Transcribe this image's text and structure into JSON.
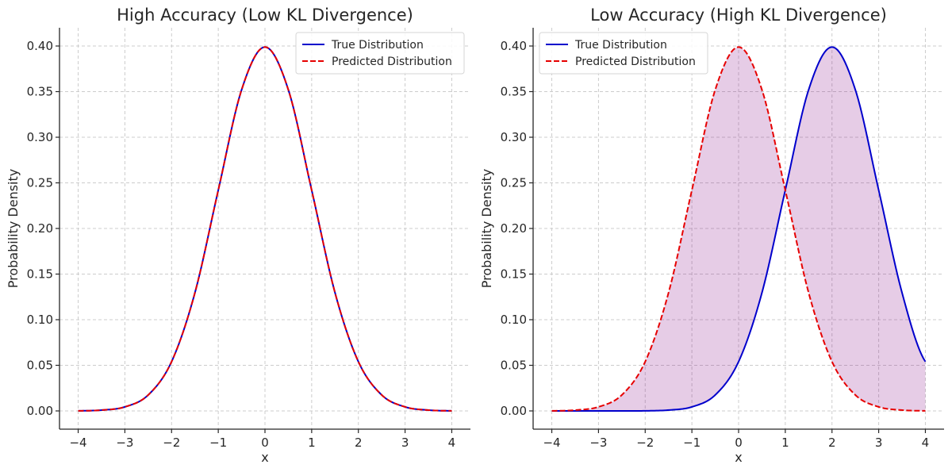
{
  "chart_data": [
    {
      "type": "line",
      "title": "High Accuracy (Low KL Divergence)",
      "xlabel": "x",
      "ylabel": "Probability Density",
      "xlim": [
        -4.4,
        4.4
      ],
      "ylim": [
        -0.02,
        0.42
      ],
      "x_ticks": [
        -4,
        -3,
        -2,
        -1,
        0,
        1,
        2,
        3,
        4
      ],
      "x_tick_labels": [
        "−4",
        "−3",
        "−2",
        "−1",
        "0",
        "1",
        "2",
        "3",
        "4"
      ],
      "y_ticks": [
        0.0,
        0.05,
        0.1,
        0.15,
        0.2,
        0.25,
        0.3,
        0.35,
        0.4
      ],
      "y_tick_labels": [
        "0.00",
        "0.05",
        "0.10",
        "0.15",
        "0.20",
        "0.25",
        "0.30",
        "0.35",
        "0.40"
      ],
      "grid": true,
      "legend_position": "top-right",
      "x": [
        -4,
        -3.5,
        -3,
        -2.5,
        -2,
        -1.5,
        -1,
        -0.5,
        0,
        0.5,
        1,
        1.5,
        2,
        2.5,
        3,
        3.5,
        4
      ],
      "series": [
        {
          "name": "True Distribution",
          "color": "#0000cc",
          "style": "solid",
          "values": [
            0.0001,
            0.0009,
            0.0044,
            0.0175,
            0.054,
            0.1295,
            0.242,
            0.3521,
            0.3989,
            0.3521,
            0.242,
            0.1295,
            0.054,
            0.0175,
            0.0044,
            0.0009,
            0.0001
          ]
        },
        {
          "name": "Predicted Distribution",
          "color": "#e60000",
          "style": "dashed",
          "values": [
            0.0001,
            0.0009,
            0.0044,
            0.0175,
            0.054,
            0.1295,
            0.242,
            0.3521,
            0.3989,
            0.3521,
            0.242,
            0.1295,
            0.054,
            0.0175,
            0.0044,
            0.0009,
            0.0001
          ]
        }
      ],
      "fill_between": false
    },
    {
      "type": "line",
      "title": "Low Accuracy (High KL Divergence)",
      "xlabel": "x",
      "ylabel": "Probability Density",
      "xlim": [
        -4.4,
        4.4
      ],
      "ylim": [
        -0.02,
        0.42
      ],
      "x_ticks": [
        -4,
        -3,
        -2,
        -1,
        0,
        1,
        2,
        3,
        4
      ],
      "x_tick_labels": [
        "−4",
        "−3",
        "−2",
        "−1",
        "0",
        "1",
        "2",
        "3",
        "4"
      ],
      "y_ticks": [
        0.0,
        0.05,
        0.1,
        0.15,
        0.2,
        0.25,
        0.3,
        0.35,
        0.4
      ],
      "y_tick_labels": [
        "0.00",
        "0.05",
        "0.10",
        "0.15",
        "0.20",
        "0.25",
        "0.30",
        "0.35",
        "0.40"
      ],
      "grid": true,
      "legend_position": "top-left",
      "x": [
        -4,
        -3.5,
        -3,
        -2.5,
        -2,
        -1.5,
        -1,
        -0.5,
        0,
        0.5,
        1,
        1.5,
        2,
        2.5,
        3,
        3.5,
        4
      ],
      "series": [
        {
          "name": "True Distribution",
          "color": "#0000cc",
          "style": "solid",
          "values": [
            0.0,
            0.0,
            0.0,
            0.0,
            0.0001,
            0.0009,
            0.0044,
            0.0175,
            0.054,
            0.1295,
            0.242,
            0.3521,
            0.3989,
            0.3521,
            0.242,
            0.1295,
            0.054
          ]
        },
        {
          "name": "Predicted Distribution",
          "color": "#e60000",
          "style": "dashed",
          "values": [
            0.0001,
            0.0009,
            0.0044,
            0.0175,
            0.054,
            0.1295,
            0.242,
            0.3521,
            0.3989,
            0.3521,
            0.242,
            0.1295,
            0.054,
            0.0175,
            0.0044,
            0.0009,
            0.0001
          ]
        }
      ],
      "fill_between": true,
      "fill_color": "#800080",
      "fill_opacity": 0.2
    }
  ]
}
